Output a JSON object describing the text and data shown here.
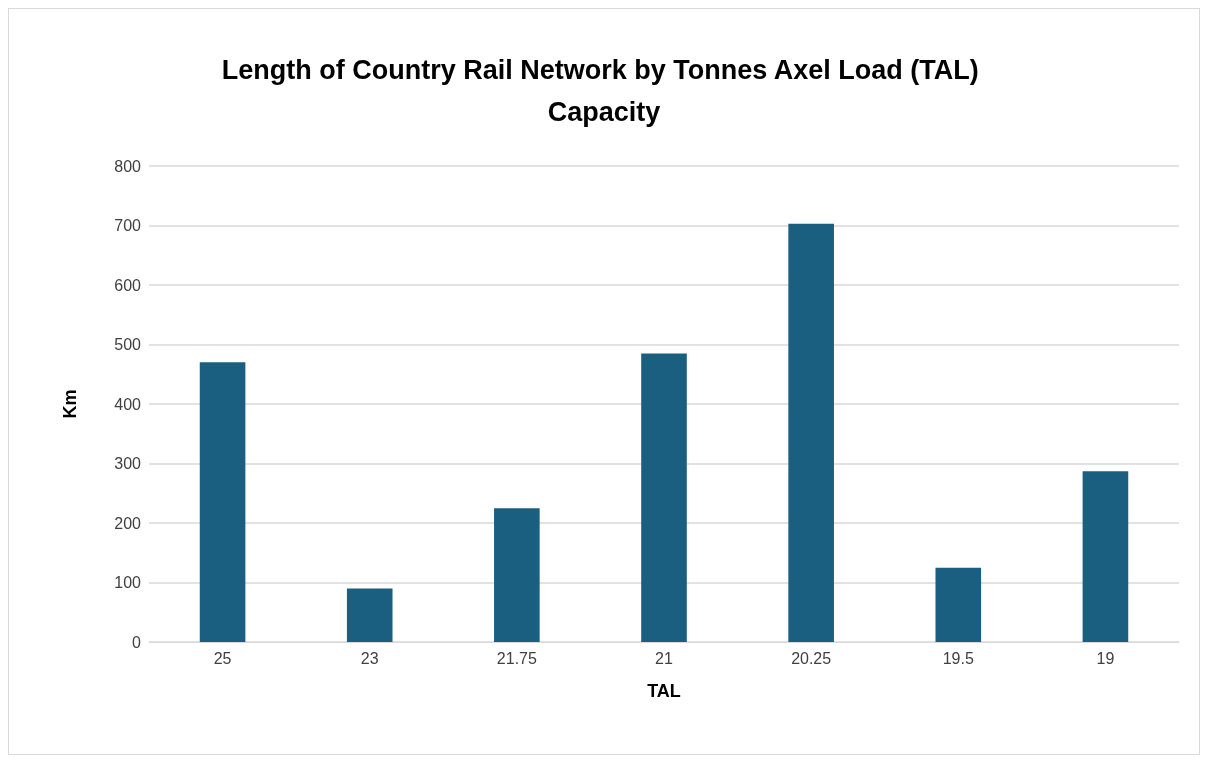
{
  "chart_data": {
    "type": "bar",
    "title": "Length of Country Rail Network by Tonnes Axel Load (TAL) Capacity",
    "xlabel": "TAL",
    "ylabel": "Km",
    "categories": [
      "25",
      "23",
      "21.75",
      "21",
      "20.25",
      "19.5",
      "19"
    ],
    "values": [
      470,
      90,
      225,
      485,
      703,
      125,
      287
    ],
    "color": "#1a5f80",
    "ylim": [
      0,
      800
    ],
    "yticks": [
      0,
      100,
      200,
      300,
      400,
      500,
      600,
      700,
      800
    ],
    "grid": "y"
  }
}
